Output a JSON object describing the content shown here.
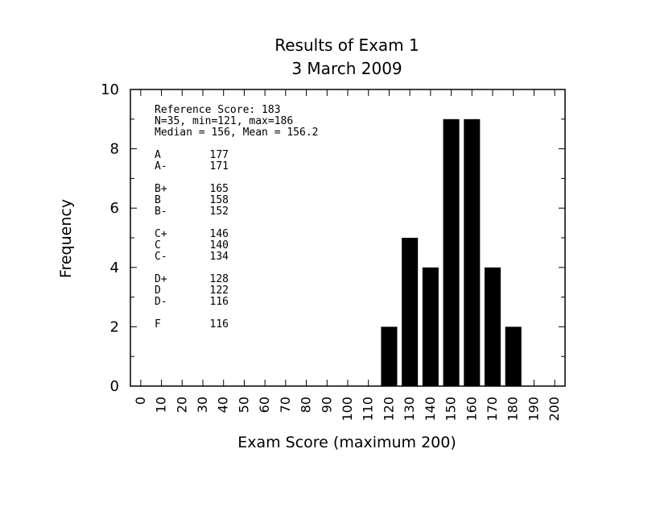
{
  "chart_data": {
    "type": "bar",
    "title": "Results of Exam 1",
    "subtitle": "3 March 2009",
    "xlabel": "Exam Score (maximum 200)",
    "ylabel": "Frequency",
    "xlim": [
      -5,
      205
    ],
    "ylim": [
      0,
      10
    ],
    "x_ticks": [
      0,
      10,
      20,
      30,
      40,
      50,
      60,
      70,
      80,
      90,
      100,
      110,
      120,
      130,
      140,
      150,
      160,
      170,
      180,
      190,
      200
    ],
    "y_ticks": [
      0,
      2,
      4,
      6,
      8,
      10
    ],
    "y_minor_ticks": [
      1,
      3,
      5,
      7,
      9
    ],
    "bin_width": 10,
    "bars": [
      {
        "x": 120,
        "value": 2
      },
      {
        "x": 130,
        "value": 5
      },
      {
        "x": 140,
        "value": 4
      },
      {
        "x": 150,
        "value": 9
      },
      {
        "x": 160,
        "value": 9
      },
      {
        "x": 170,
        "value": 4
      },
      {
        "x": 180,
        "value": 2
      }
    ],
    "bar_color": "#000000",
    "grid": false,
    "annotations": {
      "stats": [
        "Reference Score: 183",
        "N=35, min=121, max=186",
        "Median = 156, Mean = 156.2"
      ],
      "grade_cutoffs": [
        {
          "grade": "A",
          "score": "177"
        },
        {
          "grade": "A-",
          "score": "171"
        },
        {
          "grade": "B+",
          "score": "165"
        },
        {
          "grade": "B",
          "score": "158"
        },
        {
          "grade": "B-",
          "score": "152"
        },
        {
          "grade": "C+",
          "score": "146"
        },
        {
          "grade": "C",
          "score": "140"
        },
        {
          "grade": "C-",
          "score": "134"
        },
        {
          "grade": "D+",
          "score": "128"
        },
        {
          "grade": "D",
          "score": "122"
        },
        {
          "grade": "D-",
          "score": "116"
        },
        {
          "grade": "F",
          "score": "116"
        }
      ]
    }
  }
}
